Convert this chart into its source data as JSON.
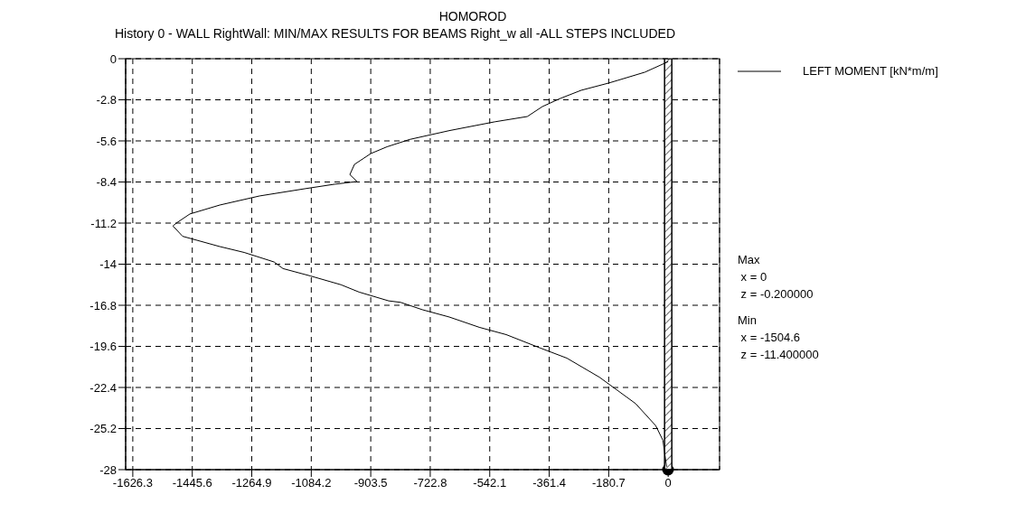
{
  "chart_data": {
    "type": "line",
    "title": "HOMOROD",
    "subtitle": "History 0 - WALL RightWall: MIN/MAX RESULTS FOR BEAMS Right_w all -ALL STEPS INCLUDED",
    "xlim": [
      -1648,
      156
    ],
    "xticks": [
      -1626.3,
      -1445.6,
      -1264.9,
      -1084.2,
      -903.5,
      -722.8,
      -542.1,
      -361.4,
      -180.7,
      0
    ],
    "ylim": [
      -28,
      0
    ],
    "yticks": [
      0,
      -2.8,
      -5.6,
      -8.4,
      -11.2,
      -14,
      -16.8,
      -19.6,
      -22.4,
      -25.2,
      -28
    ],
    "bands": [
      {
        "axis": "x",
        "from": -11,
        "to": 11,
        "color": "#000000"
      }
    ],
    "grid": true,
    "legend": "top right",
    "marker": "none",
    "line_style": "solid",
    "annotations": [
      "Max\n x = 0\n z = -0.200000",
      "Min\n x = -1504.6\n z = -11.400000"
    ],
    "series": [
      {
        "name": "LEFT MOMENT [kN*m/m]",
        "color": "#000000",
        "x": [
          0,
          -71,
          -154,
          -181,
          -264,
          -327,
          -382,
          -428,
          -527,
          -665,
          -785,
          -854,
          -903,
          -953,
          -967,
          -945,
          -1013,
          -1104,
          -1241,
          -1362,
          -1453,
          -1494,
          -1504.6,
          -1497,
          -1475,
          -1362,
          -1288,
          -1197,
          -1170,
          -1087,
          -994,
          -939,
          -849,
          -813,
          -747,
          -665,
          -574,
          -492,
          -390,
          -308,
          -209,
          -154,
          -99,
          -38,
          -16,
          -5
        ],
        "values": [
          -0.2,
          -0.92,
          -1.48,
          -1.66,
          -2.15,
          -2.7,
          -3.26,
          -3.94,
          -4.3,
          -4.9,
          -5.5,
          -6.0,
          -6.46,
          -7.2,
          -7.9,
          -8.37,
          -8.55,
          -8.86,
          -9.35,
          -9.97,
          -10.58,
          -11.2,
          -11.4,
          -11.57,
          -12.1,
          -12.8,
          -13.2,
          -13.85,
          -14.3,
          -14.8,
          -15.4,
          -15.9,
          -16.5,
          -16.6,
          -17.1,
          -17.6,
          -18.3,
          -18.8,
          -19.7,
          -20.4,
          -21.7,
          -22.6,
          -23.5,
          -25.0,
          -26.0,
          -27.8
        ]
      }
    ]
  }
}
